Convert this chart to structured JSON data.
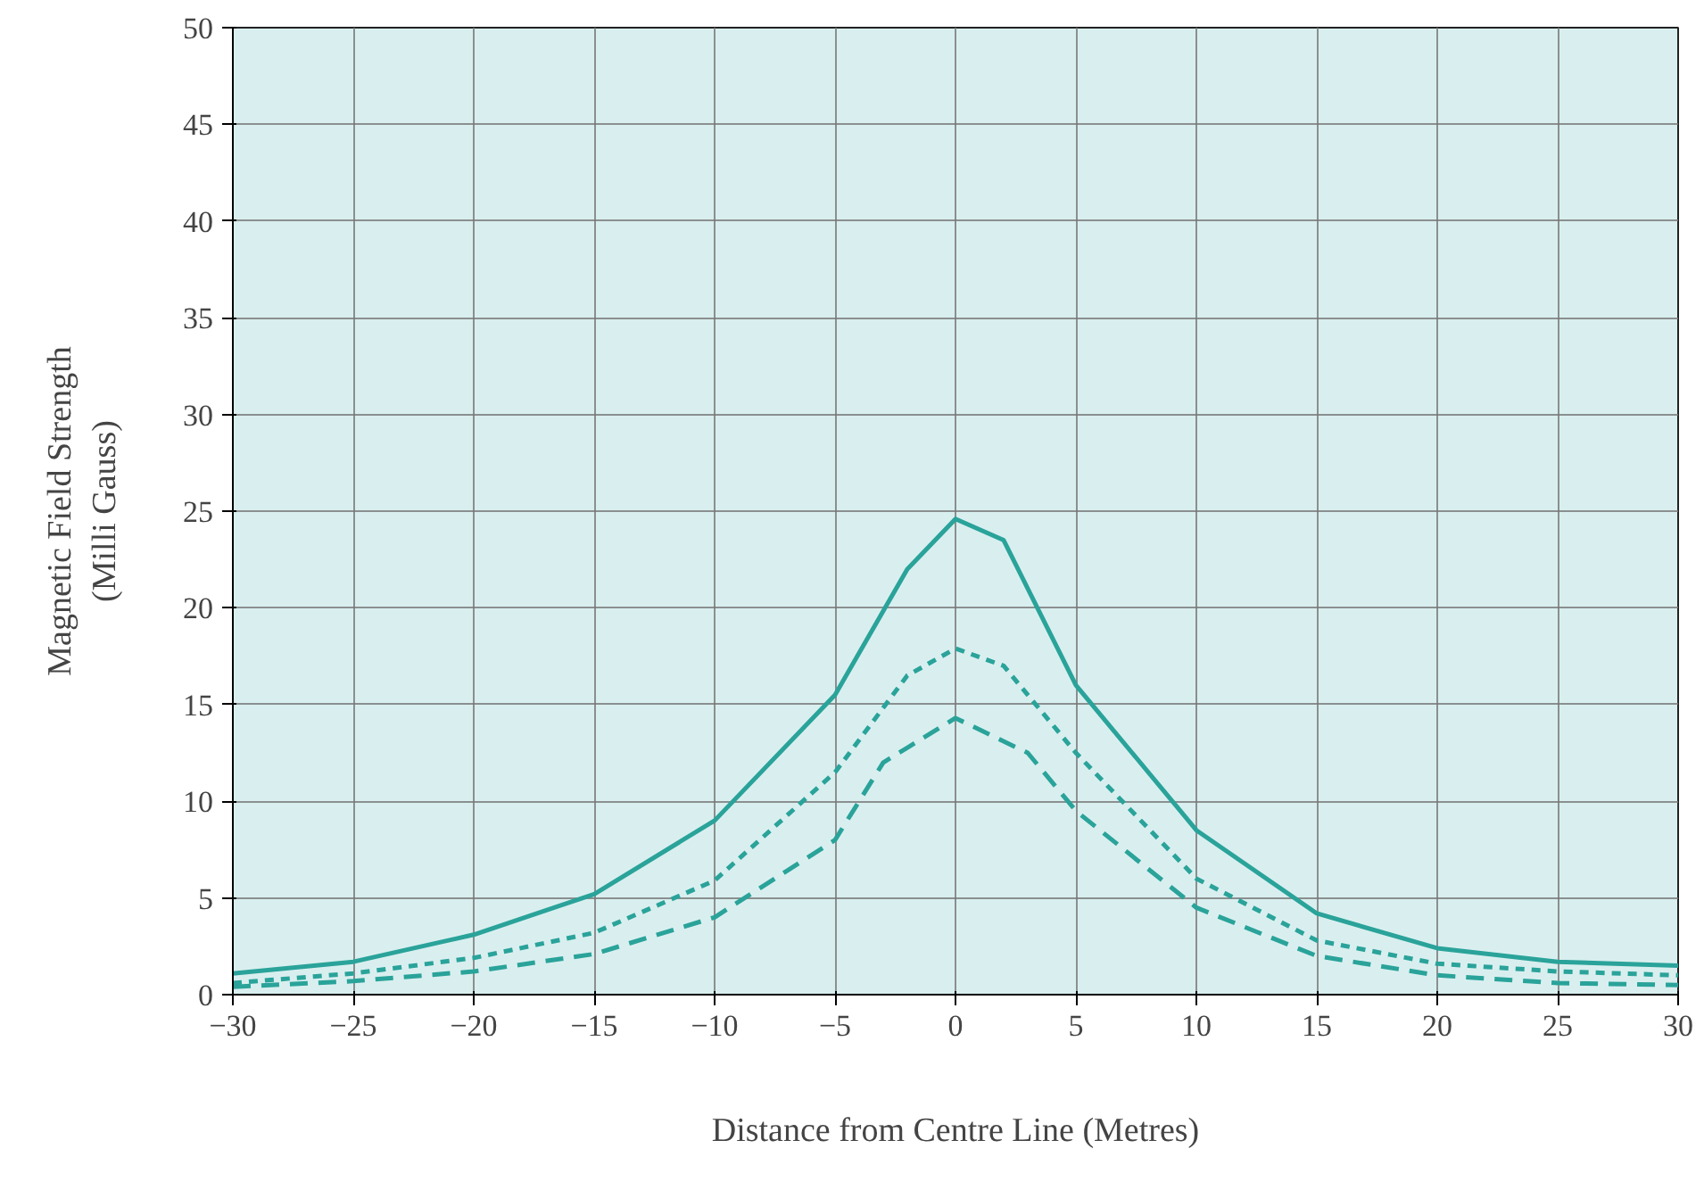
{
  "chart_data": {
    "type": "line",
    "xlabel": "Distance from Centre Line (Metres)",
    "ylabel": "Magnetic Field Strength\n(Milli Gauss)",
    "xlim": [
      -30,
      30
    ],
    "ylim": [
      0,
      50
    ],
    "xticks": [
      -30,
      -25,
      -20,
      -15,
      -10,
      -5,
      0,
      5,
      10,
      15,
      20,
      25,
      30
    ],
    "yticks": [
      0,
      5,
      10,
      15,
      20,
      25,
      30,
      35,
      40,
      45,
      50
    ],
    "grid": true,
    "marker": "none",
    "series": [
      {
        "color": "#2aa39a",
        "line_style": "solid",
        "x": [
          -30,
          -25,
          -20,
          -15,
          -10,
          -5,
          -2,
          0,
          2,
          5,
          10,
          15,
          20,
          25,
          30
        ],
        "values": [
          1.1,
          1.7,
          3.1,
          5.2,
          9,
          15.5,
          22,
          24.6,
          23.5,
          16,
          8.5,
          4.2,
          2.4,
          1.7,
          1.5
        ]
      },
      {
        "color": "#2aa39a",
        "line_style": "dotted",
        "x": [
          -30,
          -25,
          -20,
          -15,
          -10,
          -5,
          -2,
          0,
          2,
          5,
          10,
          15,
          20,
          25,
          30
        ],
        "values": [
          0.6,
          1.1,
          1.9,
          3.2,
          5.9,
          11.5,
          16.5,
          17.9,
          17,
          12.5,
          6,
          2.8,
          1.6,
          1.2,
          1.0
        ]
      },
      {
        "color": "#2aa39a",
        "line_style": "dashed",
        "x": [
          -30,
          -25,
          -20,
          -15,
          -10,
          -5,
          -3,
          0,
          3,
          5,
          10,
          15,
          20,
          25,
          30
        ],
        "values": [
          0.4,
          0.7,
          1.2,
          2.1,
          4,
          8,
          12,
          14.3,
          12.5,
          9.5,
          4.5,
          2,
          1,
          0.6,
          0.5
        ]
      }
    ]
  }
}
